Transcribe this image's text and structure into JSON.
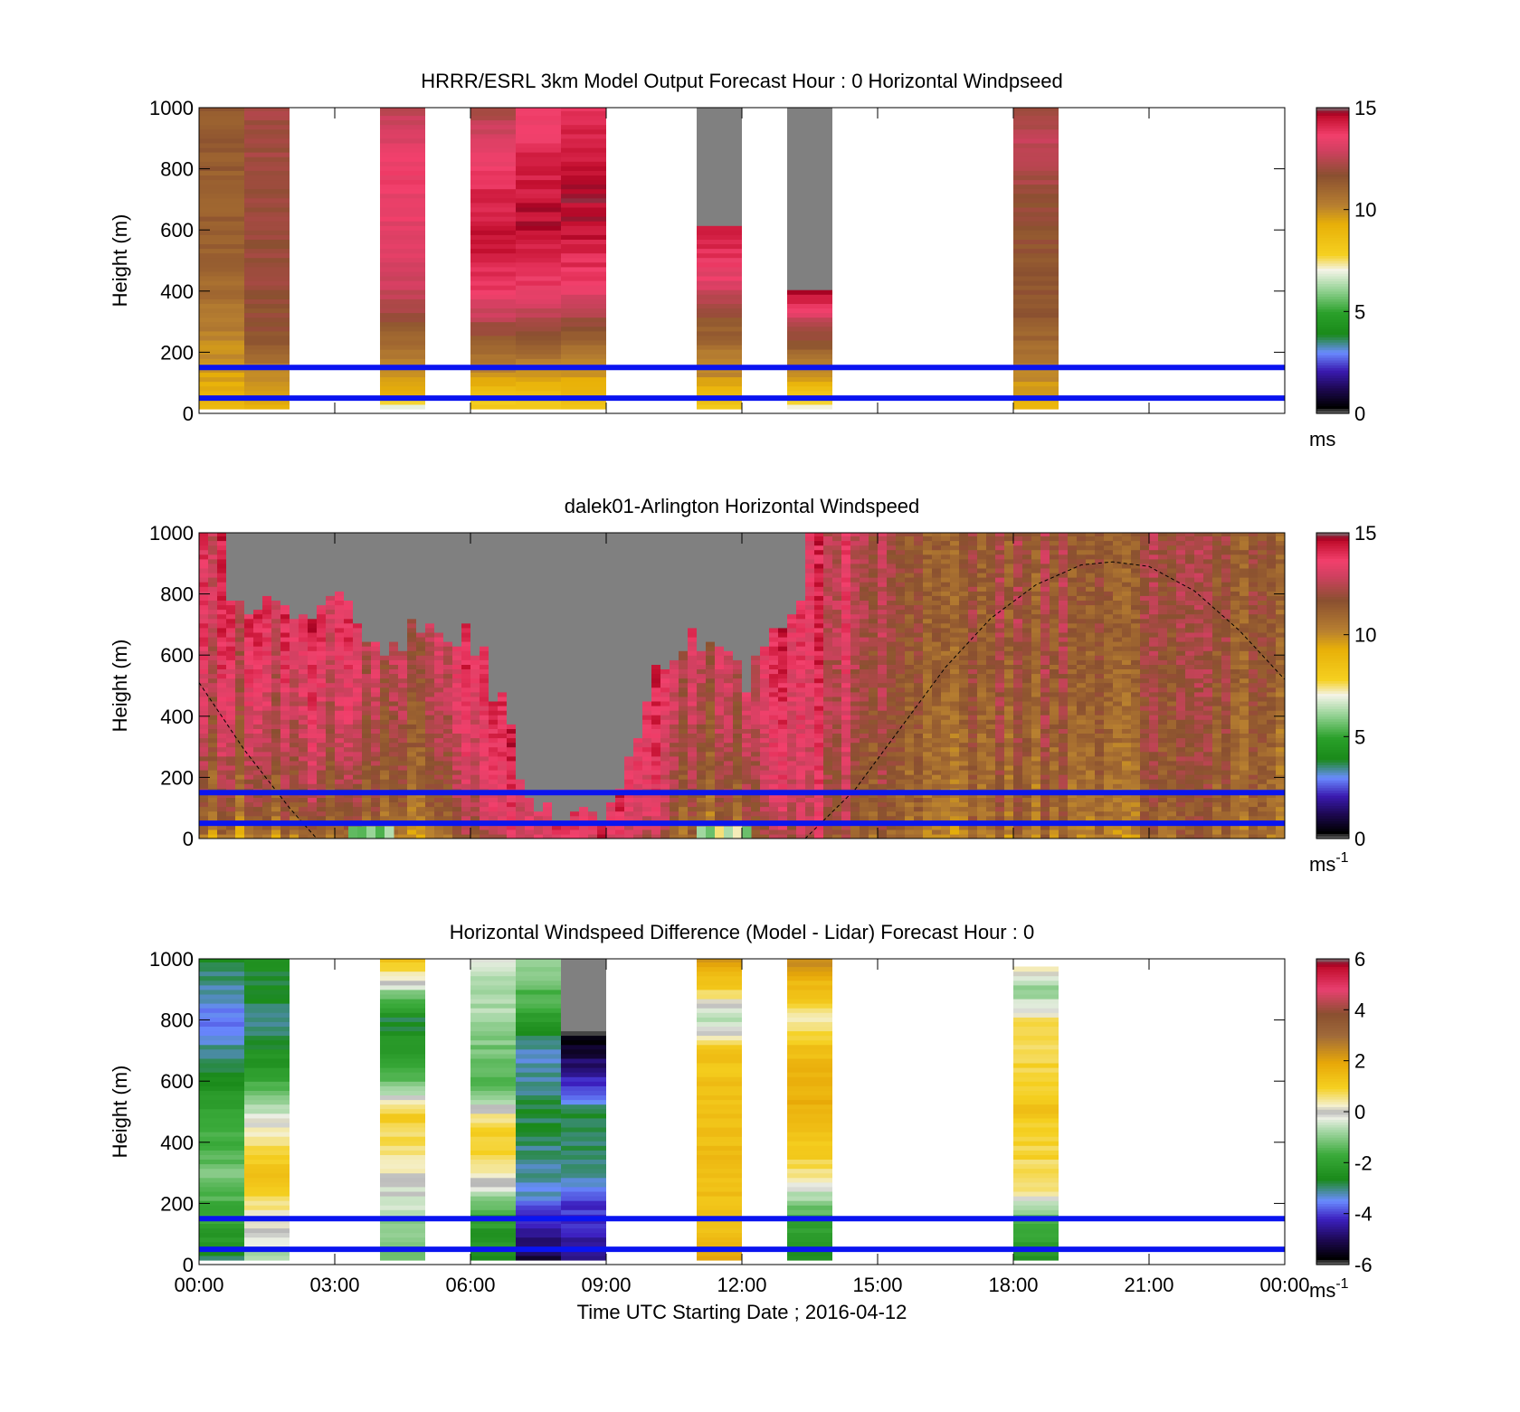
{
  "figure": {
    "xlabel": "Time UTC  Starting Date ; 2016-04-12",
    "x_tick_labels": [
      "00:00",
      "03:00",
      "06:00",
      "09:00",
      "12:00",
      "15:00",
      "18:00",
      "21:00",
      "00:00"
    ]
  },
  "chart_data": [
    {
      "type": "heatmap",
      "title": "HRRR/ESRL 3km Model Output   Forecast Hour : 0 Horizontal Windpseed",
      "ylabel": "Height (m)",
      "xlim_hours": [
        0,
        24
      ],
      "ylim": [
        0,
        1000
      ],
      "y_ticks": [
        0,
        200,
        400,
        600,
        800,
        1000
      ],
      "colorbar": {
        "min": 0,
        "max": 15,
        "ticks": [
          0,
          5,
          10,
          15
        ],
        "unit_base": "ms",
        "unit_exp": "",
        "palette": "speed"
      },
      "reference_lines_m": [
        150,
        50
      ],
      "columns": [
        {
          "start": 0.0,
          "end": 1.0,
          "profile": [
            [
              15,
              9
            ],
            [
              100,
              9.4
            ],
            [
              250,
              10.2
            ],
            [
              500,
              11.2
            ],
            [
              1000,
              11.4
            ]
          ]
        },
        {
          "start": 1.0,
          "end": 2.0,
          "profile": [
            [
              15,
              9
            ],
            [
              100,
              9.6
            ],
            [
              250,
              11.6
            ],
            [
              500,
              12.0
            ],
            [
              1000,
              12.1
            ]
          ]
        },
        {
          "start": 4.0,
          "end": 5.0,
          "profile": [
            [
              15,
              6.2
            ],
            [
              60,
              9.4
            ],
            [
              200,
              10.5
            ],
            [
              400,
              12.8
            ],
            [
              600,
              13.4
            ],
            [
              800,
              13.6
            ],
            [
              1000,
              12.6
            ]
          ]
        },
        {
          "start": 6.0,
          "end": 7.0,
          "profile": [
            [
              15,
              7.8
            ],
            [
              100,
              9.4
            ],
            [
              250,
              11.6
            ],
            [
              400,
              13.8
            ],
            [
              600,
              14.5
            ],
            [
              800,
              13.8
            ],
            [
              1000,
              12.2
            ]
          ]
        },
        {
          "start": 7.0,
          "end": 8.0,
          "profile": [
            [
              15,
              7.8
            ],
            [
              100,
              9.4
            ],
            [
              250,
              11.5
            ],
            [
              400,
              13.6
            ],
            [
              600,
              14.6
            ],
            [
              800,
              14.3
            ],
            [
              1000,
              13.4
            ]
          ]
        },
        {
          "start": 8.0,
          "end": 9.0,
          "profile": [
            [
              15,
              8.0
            ],
            [
              100,
              9.4
            ],
            [
              250,
              11.2
            ],
            [
              400,
              13.4
            ],
            [
              600,
              14.6
            ],
            [
              800,
              14.6
            ],
            [
              1000,
              13.8
            ]
          ]
        },
        {
          "start": 11.0,
          "end": 12.0,
          "profile": [
            [
              15,
              8.0
            ],
            [
              100,
              9.6
            ],
            [
              300,
              11.5
            ],
            [
              420,
              13.2
            ],
            [
              600,
              14.5
            ],
            [
              610,
              null
            ],
            [
              1000,
              null
            ]
          ]
        },
        {
          "start": 13.0,
          "end": 14.0,
          "profile": [
            [
              15,
              6.8
            ],
            [
              100,
              9.3
            ],
            [
              250,
              11.8
            ],
            [
              400,
              14.6
            ],
            [
              410,
              null
            ],
            [
              1000,
              null
            ]
          ]
        },
        {
          "start": 18.0,
          "end": 19.0,
          "profile": [
            [
              15,
              9.0
            ],
            [
              100,
              9.8
            ],
            [
              300,
              11.4
            ],
            [
              700,
              11.8
            ],
            [
              850,
              12.8
            ],
            [
              1000,
              12.2
            ]
          ]
        }
      ]
    },
    {
      "type": "heatmap",
      "title": "dalek01-Arlington  Horizontal Windspeed",
      "ylabel": "Height (m)",
      "xlim_hours": [
        0,
        24
      ],
      "ylim": [
        0,
        1000
      ],
      "y_ticks": [
        0,
        200,
        400,
        600,
        800,
        1000
      ],
      "colorbar": {
        "min": 0,
        "max": 15,
        "ticks": [
          0,
          5,
          10,
          15
        ],
        "unit_base": "ms",
        "unit_exp": "-1",
        "palette": "speed"
      },
      "reference_lines_m": [
        150,
        50
      ],
      "overlay_curve": {
        "style": "dashed",
        "points": [
          [
            0,
            510
          ],
          [
            1,
            290
          ],
          [
            2,
            100
          ],
          [
            2.6,
            0
          ],
          [
            13.4,
            0
          ],
          [
            14.5,
            160
          ],
          [
            15.5,
            360
          ],
          [
            16.5,
            560
          ],
          [
            17.5,
            720
          ],
          [
            18.5,
            830
          ],
          [
            19.5,
            895
          ],
          [
            20.2,
            905
          ],
          [
            21,
            890
          ],
          [
            22,
            810
          ],
          [
            23,
            680
          ],
          [
            24,
            520
          ]
        ]
      },
      "time_anchors": [
        {
          "t": 0.0,
          "low": 10.0,
          "high": 13.5,
          "no_data_above": null
        },
        {
          "t": 1.0,
          "low": 9.8,
          "high": 13.4,
          "no_data_above": 760
        },
        {
          "t": 2.0,
          "low": 10.5,
          "high": 13.6,
          "no_data_above": 690
        },
        {
          "t": 3.0,
          "low": 10.8,
          "high": 13.8,
          "no_data_above": 800
        },
        {
          "t": 4.0,
          "low": 9.6,
          "high": 12.2,
          "no_data_above": 620
        },
        {
          "t": 5.0,
          "low": 10.5,
          "high": 13.0,
          "no_data_above": 720
        },
        {
          "t": 6.0,
          "low": 11.5,
          "high": 13.8,
          "no_data_above": 640
        },
        {
          "t": 6.6,
          "low": 12.8,
          "high": 14.5,
          "no_data_above": 420
        },
        {
          "t": 7.2,
          "low": 13.6,
          "high": 14.6,
          "no_data_above": 150
        },
        {
          "t": 8.0,
          "low": 13.6,
          "high": 14.6,
          "no_data_above": 80
        },
        {
          "t": 9.0,
          "low": 13.6,
          "high": 14.6,
          "no_data_above": 90
        },
        {
          "t": 10.0,
          "low": 12.6,
          "high": 14.2,
          "no_data_above": 560
        },
        {
          "t": 11.0,
          "low": 9.4,
          "high": 12.5,
          "no_data_above": 640
        },
        {
          "t": 12.0,
          "low": 11.2,
          "high": 13.4,
          "no_data_above": 500
        },
        {
          "t": 13.0,
          "low": 12.4,
          "high": 14.0,
          "no_data_above": 780
        },
        {
          "t": 13.5,
          "low": 12.8,
          "high": 13.8,
          "no_data_above": null
        },
        {
          "t": 14.5,
          "low": 11.0,
          "high": 12.4,
          "no_data_above": null
        },
        {
          "t": 16.0,
          "low": 10.2,
          "high": 11.2,
          "no_data_above": null
        },
        {
          "t": 18.0,
          "low": 10.6,
          "high": 11.8,
          "no_data_above": null
        },
        {
          "t": 20.0,
          "low": 10.4,
          "high": 11.6,
          "no_data_above": null
        },
        {
          "t": 22.0,
          "low": 10.8,
          "high": 11.8,
          "no_data_above": null
        },
        {
          "t": 24.0,
          "low": 10.2,
          "high": 11.2,
          "no_data_above": null
        }
      ],
      "low_speed_patches": [
        {
          "t0": 3.3,
          "t1": 4.3,
          "h0": 0,
          "h1": 40,
          "value": 6.0
        },
        {
          "t0": 11.0,
          "t1": 12.0,
          "h0": 0,
          "h1": 40,
          "value": 6.5
        }
      ]
    },
    {
      "type": "heatmap",
      "title": "Horizontal Windspeed Difference (Model - Lidar) Forecast Hour : 0",
      "ylabel": "Height (m)",
      "xlim_hours": [
        0,
        24
      ],
      "ylim": [
        0,
        1000
      ],
      "y_ticks": [
        0,
        200,
        400,
        600,
        800,
        1000
      ],
      "colorbar": {
        "min": -6,
        "max": 6,
        "ticks": [
          -6,
          -4,
          -2,
          0,
          2,
          4,
          6
        ],
        "unit_base": "ms",
        "unit_exp": "-1",
        "palette": "diff"
      },
      "reference_lines_m": [
        150,
        50
      ],
      "columns": [
        {
          "start": 0.0,
          "end": 1.0,
          "profile": [
            [
              15,
              -2.8
            ],
            [
              150,
              -1.8
            ],
            [
              300,
              -1.2
            ],
            [
              500,
              -2.0
            ],
            [
              650,
              -2.8
            ],
            [
              800,
              -3.6
            ],
            [
              1000,
              -2.8
            ]
          ]
        },
        {
          "start": 1.0,
          "end": 2.0,
          "profile": [
            [
              15,
              -0.8
            ],
            [
              100,
              0.0
            ],
            [
              300,
              1.2
            ],
            [
              450,
              0.2
            ],
            [
              600,
              -1.8
            ],
            [
              750,
              -3.0
            ],
            [
              1000,
              -2.6
            ]
          ]
        },
        {
          "start": 4.0,
          "end": 5.0,
          "profile": [
            [
              15,
              -1.4
            ],
            [
              150,
              -0.8
            ],
            [
              350,
              0.5
            ],
            [
              500,
              1.0
            ],
            [
              600,
              -1.4
            ],
            [
              800,
              -2.8
            ],
            [
              1000,
              1.4
            ]
          ]
        },
        {
          "start": 6.0,
          "end": 7.0,
          "profile": [
            [
              15,
              -2.6
            ],
            [
              150,
              -2.0
            ],
            [
              300,
              0.6
            ],
            [
              450,
              1.0
            ],
            [
              600,
              -1.6
            ],
            [
              800,
              -0.8
            ],
            [
              1000,
              -0.4
            ]
          ]
        },
        {
          "start": 7.0,
          "end": 8.0,
          "profile": [
            [
              15,
              -5.2
            ],
            [
              100,
              -4.6
            ],
            [
              250,
              -3.2
            ],
            [
              500,
              -2.8
            ],
            [
              700,
              -3.4
            ],
            [
              800,
              -2.0
            ],
            [
              1000,
              -0.8
            ]
          ]
        },
        {
          "start": 8.0,
          "end": 9.0,
          "profile": [
            [
              15,
              -4.6
            ],
            [
              200,
              -4.0
            ],
            [
              300,
              -3.0
            ],
            [
              500,
              -2.8
            ],
            [
              600,
              -4.2
            ],
            [
              750,
              -5.8
            ],
            [
              760,
              null
            ],
            [
              870,
              null
            ],
            [
              871,
              null
            ],
            [
              1000,
              null
            ]
          ]
        },
        {
          "start": 11.0,
          "end": 12.0,
          "profile": [
            [
              15,
              2.0
            ],
            [
              100,
              1.4
            ],
            [
              400,
              1.4
            ],
            [
              700,
              1.2
            ],
            [
              800,
              -0.8
            ],
            [
              900,
              1.0
            ],
            [
              1000,
              2.2
            ]
          ]
        },
        {
          "start": 13.0,
          "end": 14.0,
          "profile": [
            [
              15,
              -2.6
            ],
            [
              150,
              -1.8
            ],
            [
              300,
              0.6
            ],
            [
              500,
              1.8
            ],
            [
              700,
              1.4
            ],
            [
              800,
              0.2
            ],
            [
              900,
              1.4
            ],
            [
              1000,
              2.4
            ]
          ]
        },
        {
          "start": 18.0,
          "end": 19.0,
          "profile": [
            [
              15,
              -2.4
            ],
            [
              150,
              -1.6
            ],
            [
              250,
              0.6
            ],
            [
              500,
              1.2
            ],
            [
              800,
              0.6
            ],
            [
              900,
              -1.2
            ],
            [
              980,
              0.8
            ]
          ]
        }
      ]
    }
  ]
}
